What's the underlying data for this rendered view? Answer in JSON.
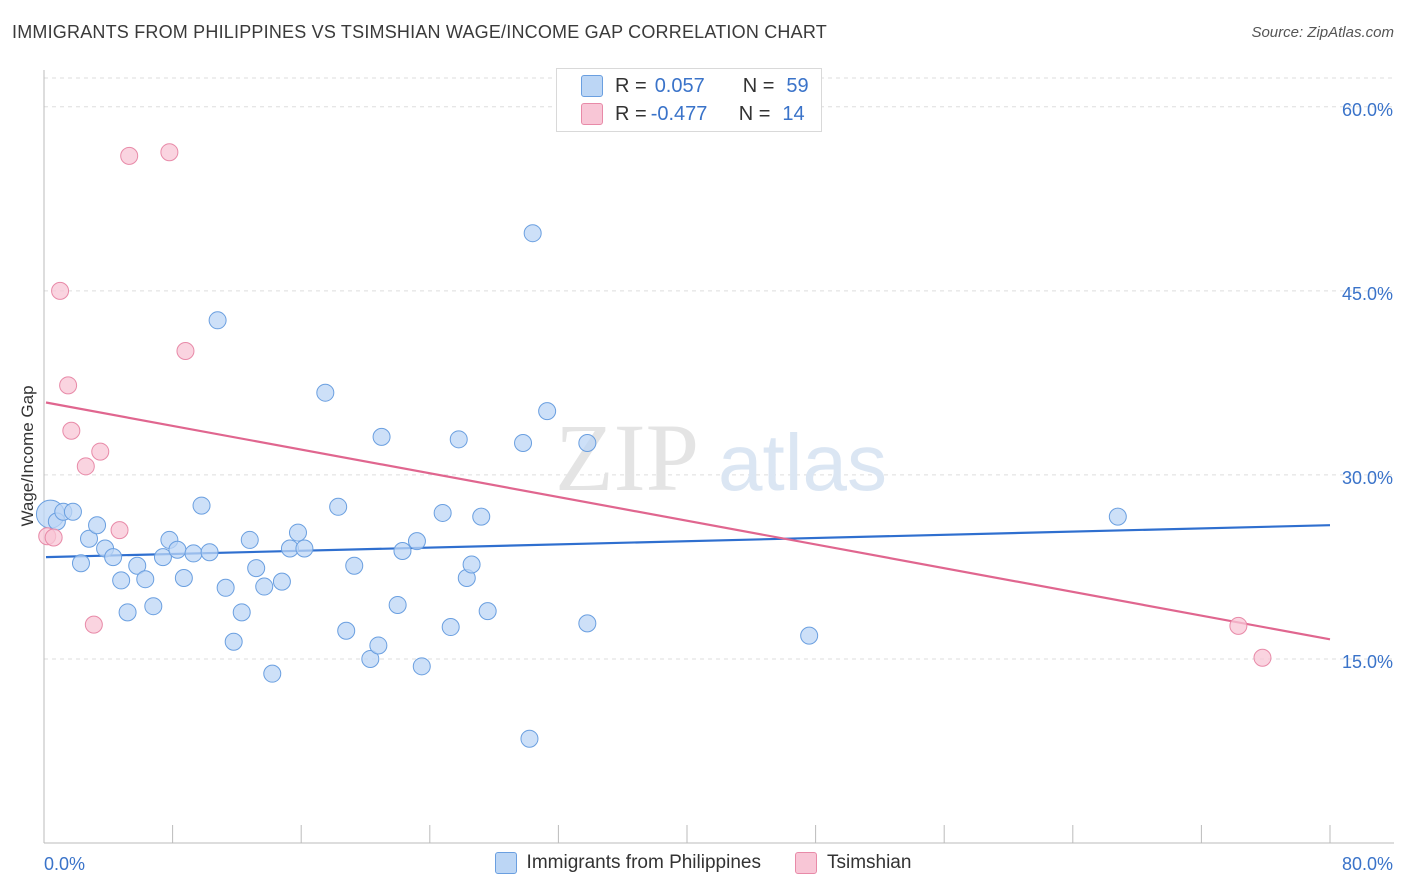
{
  "header": {
    "title": "IMMIGRANTS FROM PHILIPPINES VS TSIMSHIAN WAGE/INCOME GAP CORRELATION CHART",
    "source": "Source: ZipAtlas.com"
  },
  "watermark": {
    "zip": "ZIP",
    "atlas": "atlas"
  },
  "legend_top": {
    "rows": [
      {
        "r_label": "R =",
        "r_value": "0.057",
        "n_label": "N =",
        "n_value": "59"
      },
      {
        "r_label": "R =",
        "r_value": "-0.477",
        "n_label": "N =",
        "n_value": "14"
      }
    ]
  },
  "colors": {
    "blue_fill": "#bcd6f5",
    "blue_stroke": "#6a9fe0",
    "blue_line": "#2f6fcf",
    "pink_fill": "#f8c6d6",
    "pink_stroke": "#e88aa8",
    "pink_line": "#e0668f",
    "axis_text": "#3a73c9",
    "grid": "#dddddd"
  },
  "chart_data": {
    "type": "scatter",
    "title": "IMMIGRANTS FROM PHILIPPINES VS TSIMSHIAN WAGE/INCOME GAP CORRELATION CHART",
    "xlabel": "",
    "ylabel": "Wage/Income Gap",
    "xlim": [
      0,
      80
    ],
    "ylim": [
      0,
      63
    ],
    "x_tick_labels": [
      "0.0%",
      "80.0%"
    ],
    "y_ticks": [
      15,
      30,
      45,
      60
    ],
    "y_tick_labels": [
      "15.0%",
      "30.0%",
      "45.0%",
      "60.0%"
    ],
    "grid": true,
    "legend_position": "bottom",
    "series": [
      {
        "name": "Immigrants from Philippines",
        "points": [
          [
            0.4,
            26.8
          ],
          [
            0.8,
            26.2
          ],
          [
            1.2,
            27.0
          ],
          [
            1.8,
            27.0
          ],
          [
            2.3,
            22.8
          ],
          [
            2.8,
            24.8
          ],
          [
            3.3,
            25.9
          ],
          [
            3.8,
            24.0
          ],
          [
            4.3,
            23.3
          ],
          [
            4.8,
            21.4
          ],
          [
            5.2,
            18.8
          ],
          [
            5.8,
            22.6
          ],
          [
            6.3,
            21.5
          ],
          [
            6.8,
            19.3
          ],
          [
            7.4,
            23.3
          ],
          [
            7.8,
            24.7
          ],
          [
            8.3,
            23.9
          ],
          [
            8.7,
            21.6
          ],
          [
            9.3,
            23.6
          ],
          [
            9.8,
            27.5
          ],
          [
            10.3,
            23.7
          ],
          [
            10.8,
            42.6
          ],
          [
            11.3,
            20.8
          ],
          [
            11.8,
            16.4
          ],
          [
            12.3,
            18.8
          ],
          [
            12.8,
            24.7
          ],
          [
            13.2,
            22.4
          ],
          [
            13.7,
            20.9
          ],
          [
            14.2,
            13.8
          ],
          [
            14.8,
            21.3
          ],
          [
            15.3,
            24.0
          ],
          [
            15.8,
            25.3
          ],
          [
            16.2,
            24.0
          ],
          [
            17.5,
            36.7
          ],
          [
            18.3,
            27.4
          ],
          [
            18.8,
            17.3
          ],
          [
            19.3,
            22.6
          ],
          [
            20.3,
            15.0
          ],
          [
            20.8,
            16.1
          ],
          [
            21.0,
            33.1
          ],
          [
            22.0,
            19.4
          ],
          [
            22.3,
            23.8
          ],
          [
            23.2,
            24.6
          ],
          [
            23.5,
            14.4
          ],
          [
            24.8,
            26.9
          ],
          [
            25.3,
            17.6
          ],
          [
            25.8,
            32.9
          ],
          [
            26.3,
            21.6
          ],
          [
            26.6,
            22.7
          ],
          [
            27.2,
            26.6
          ],
          [
            27.6,
            18.9
          ],
          [
            29.8,
            32.6
          ],
          [
            30.2,
            8.5
          ],
          [
            30.4,
            49.7
          ],
          [
            31.3,
            35.2
          ],
          [
            33.8,
            32.6
          ],
          [
            33.8,
            17.9
          ],
          [
            47.6,
            16.9
          ],
          [
            66.8,
            26.6
          ]
        ],
        "trend": {
          "x": [
            0,
            80
          ],
          "y": [
            23.3,
            25.9
          ]
        }
      },
      {
        "name": "Tsimshian",
        "points": [
          [
            0.2,
            25.0
          ],
          [
            0.6,
            24.9
          ],
          [
            1.0,
            45.0
          ],
          [
            1.5,
            37.3
          ],
          [
            1.7,
            33.6
          ],
          [
            2.6,
            30.7
          ],
          [
            3.5,
            31.9
          ],
          [
            3.1,
            17.8
          ],
          [
            4.7,
            25.5
          ],
          [
            5.3,
            56.0
          ],
          [
            7.8,
            56.3
          ],
          [
            8.8,
            40.1
          ],
          [
            74.3,
            17.7
          ],
          [
            75.8,
            15.1
          ]
        ],
        "trend": {
          "x": [
            0,
            80
          ],
          "y": [
            35.9,
            16.6
          ]
        }
      }
    ]
  }
}
